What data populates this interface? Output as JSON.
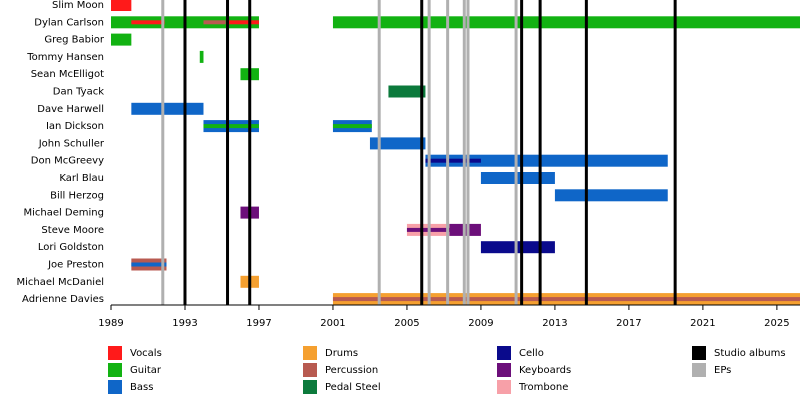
{
  "chart_data": {
    "type": "timeline",
    "xlim": [
      1989,
      2026.25
    ],
    "xticks": [
      1989,
      1993,
      1997,
      2001,
      2005,
      2009,
      2013,
      2017,
      2021,
      2025
    ],
    "roles": [
      {
        "name": "Vocals",
        "color": "#ff1a1a"
      },
      {
        "name": "Guitar",
        "color": "#12b212"
      },
      {
        "name": "Bass",
        "color": "#0f66c8"
      },
      {
        "name": "Drums",
        "color": "#f5a030"
      },
      {
        "name": "Percussion",
        "color": "#b85a50"
      },
      {
        "name": "Pedal Steel",
        "color": "#0c7a3c"
      },
      {
        "name": "Cello",
        "color": "#0a0a8c"
      },
      {
        "name": "Keyboards",
        "color": "#6c0f7a"
      },
      {
        "name": "Trombone",
        "color": "#f7a0a8"
      }
    ],
    "events": [
      {
        "name": "Studio albums",
        "color": "#000000",
        "x": [
          1993,
          1995.3,
          1996.5,
          2005.8,
          2011.2,
          2012.2,
          2014.7,
          2019.5
        ]
      },
      {
        "name": "EPs",
        "color": "#b0b0b0",
        "x": [
          1991.8,
          2003.5,
          2006.2,
          2007.2,
          2008.1,
          2008.3,
          2010.9
        ]
      }
    ],
    "members": [
      {
        "name": "Slim Moon",
        "bars": [
          {
            "start": 1989,
            "end": 1990.1,
            "role": "Vocals"
          }
        ]
      },
      {
        "name": "Dylan Carlson",
        "bars": [
          {
            "start": 1989,
            "end": 1997,
            "role": "Guitar"
          },
          {
            "start": 1990.1,
            "end": 1991.9,
            "role": "Vocals",
            "stripe": true
          },
          {
            "start": 1994,
            "end": 1995.2,
            "role": "Percussion",
            "stripe": true
          },
          {
            "start": 1995.3,
            "end": 1997,
            "role": "Vocals",
            "stripe": true
          },
          {
            "start": 2001,
            "end": 2026.25,
            "role": "Guitar"
          }
        ]
      },
      {
        "name": "Greg Babior",
        "bars": [
          {
            "start": 1989,
            "end": 1990.1,
            "role": "Guitar"
          }
        ]
      },
      {
        "name": "Tommy Hansen",
        "bars": [
          {
            "start": 1993.8,
            "end": 1994,
            "role": "Guitar"
          }
        ]
      },
      {
        "name": "Sean McElligot",
        "bars": [
          {
            "start": 1996,
            "end": 1997,
            "role": "Guitar"
          }
        ]
      },
      {
        "name": "Dan Tyack",
        "bars": [
          {
            "start": 2004,
            "end": 2006,
            "role": "Pedal Steel"
          }
        ]
      },
      {
        "name": "Dave Harwell",
        "bars": [
          {
            "start": 1990.1,
            "end": 1994,
            "role": "Bass"
          }
        ]
      },
      {
        "name": "Ian Dickson",
        "bars": [
          {
            "start": 1994,
            "end": 1997,
            "role": "Bass"
          },
          {
            "start": 1994,
            "end": 1997,
            "role": "Guitar",
            "stripe": true
          },
          {
            "start": 2001,
            "end": 2003.1,
            "role": "Bass"
          },
          {
            "start": 2001,
            "end": 2003.1,
            "role": "Guitar",
            "stripe": true
          }
        ]
      },
      {
        "name": "John Schuller",
        "bars": [
          {
            "start": 2003,
            "end": 2006,
            "role": "Bass"
          }
        ]
      },
      {
        "name": "Don McGreevy",
        "bars": [
          {
            "start": 2006,
            "end": 2019.1,
            "role": "Bass"
          },
          {
            "start": 2006,
            "end": 2009,
            "role": "Cello",
            "stripe": true
          }
        ]
      },
      {
        "name": "Karl Blau",
        "bars": [
          {
            "start": 2009,
            "end": 2013,
            "role": "Bass"
          }
        ]
      },
      {
        "name": "Bill Herzog",
        "bars": [
          {
            "start": 2013,
            "end": 2019.1,
            "role": "Bass"
          }
        ]
      },
      {
        "name": "Michael Deming",
        "bars": [
          {
            "start": 1996,
            "end": 1997,
            "role": "Keyboards"
          }
        ]
      },
      {
        "name": "Steve Moore",
        "bars": [
          {
            "start": 2005,
            "end": 2007.3,
            "role": "Trombone"
          },
          {
            "start": 2005,
            "end": 2007.3,
            "role": "Keyboards",
            "stripe": true
          },
          {
            "start": 2007.3,
            "end": 2009,
            "role": "Keyboards"
          }
        ]
      },
      {
        "name": "Lori Goldston",
        "bars": [
          {
            "start": 2009,
            "end": 2013,
            "role": "Cello"
          }
        ]
      },
      {
        "name": "Joe Preston",
        "bars": [
          {
            "start": 1990.1,
            "end": 1992,
            "role": "Percussion"
          },
          {
            "start": 1990.1,
            "end": 1992,
            "role": "Bass",
            "stripe": true
          }
        ]
      },
      {
        "name": "Michael McDaniel",
        "bars": [
          {
            "start": 1996,
            "end": 1997,
            "role": "Drums"
          }
        ]
      },
      {
        "name": "Adrienne Davies",
        "bars": [
          {
            "start": 2001,
            "end": 2026.25,
            "role": "Drums"
          },
          {
            "start": 2001,
            "end": 2026.25,
            "role": "Percussion",
            "stripe": true
          }
        ]
      }
    ]
  }
}
